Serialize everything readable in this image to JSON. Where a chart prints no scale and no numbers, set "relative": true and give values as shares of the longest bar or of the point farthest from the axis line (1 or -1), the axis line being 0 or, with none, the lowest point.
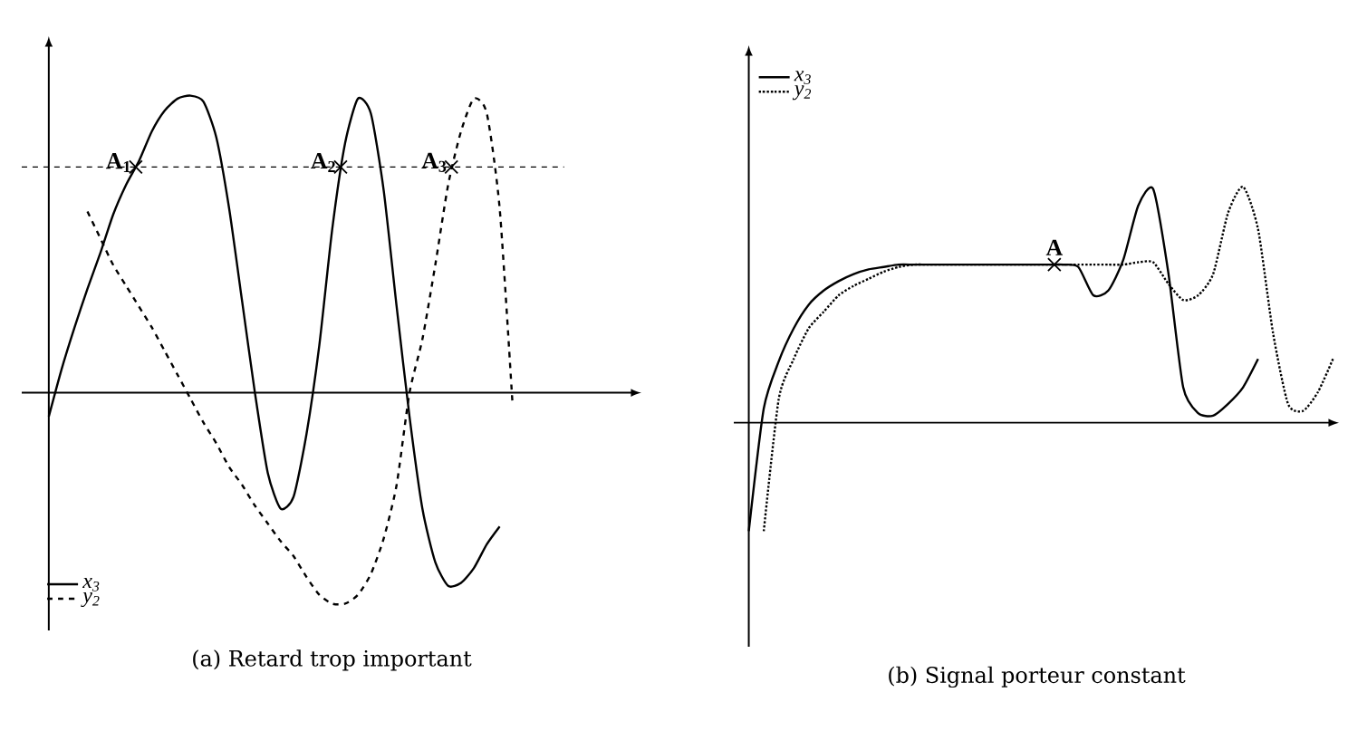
{
  "chart_data": [
    {
      "type": "line",
      "title": "(a) Retard trop important",
      "relative": true,
      "legend": "bottom left",
      "categories": [
        null,
        null,
        null,
        null,
        null,
        null,
        null,
        null,
        null,
        null,
        null,
        null,
        null,
        null,
        null,
        null,
        null,
        null,
        null,
        null,
        null,
        null,
        null,
        null,
        null,
        null,
        null,
        null,
        null,
        null,
        null,
        null,
        null,
        null,
        null,
        null,
        null
      ],
      "series": [
        {
          "name": "x$_{3}$",
          "color": "#000000",
          "line_style": "solid",
          "values": [
            -0.08,
            0.08,
            0.22,
            0.35,
            0.47,
            0.6,
            0.7,
            0.78,
            0.88,
            0.95,
            0.99,
            1.0,
            0.98,
            0.86,
            0.62,
            0.31,
            0,
            -0.27,
            -0.39,
            -0.35,
            -0.14,
            0.16,
            0.55,
            0.84,
            0.99,
            0.94,
            0.68,
            0.29,
            -0.08,
            -0.39,
            -0.57,
            -0.65,
            -0.64,
            -0.59,
            -0.51,
            -0.45,
            null
          ]
        },
        {
          "name": "y$_{2}$",
          "color": "#000000",
          "line_style": "dashed",
          "values": [
            null,
            null,
            null,
            0.61,
            0.52,
            0.43,
            0.36,
            0.29,
            0.22,
            0.14,
            0.06,
            -0.02,
            -0.1,
            -0.17,
            -0.25,
            -0.31,
            -0.38,
            -0.44,
            -0.5,
            -0.55,
            -0.62,
            -0.68,
            -0.71,
            -0.71,
            -0.68,
            -0.61,
            -0.49,
            -0.31,
            0,
            0.18,
            0.43,
            0.7,
            0.88,
            0.99,
            0.94,
            0.62,
            -0.04
          ]
        }
      ],
      "ref_lines": [
        {
          "axis": "y",
          "value": 0.76,
          "line_style": "dashed"
        }
      ],
      "annotations": [
        {
          "text": "A$_{1}$",
          "y": 0.76
        },
        {
          "text": "A$_{2}$",
          "y": 0.76
        },
        {
          "text": "A$_{3}$",
          "y": 0.76
        }
      ]
    },
    {
      "type": "line",
      "title": "(b) Signal porteur constant",
      "relative": true,
      "legend": "top left",
      "categories": [
        null,
        null,
        null,
        null,
        null,
        null,
        null,
        null,
        null,
        null,
        null,
        null,
        null,
        null,
        null,
        null,
        null,
        null,
        null,
        null,
        null,
        null,
        null,
        null,
        null,
        null,
        null,
        null,
        null,
        null,
        null,
        null,
        null,
        null,
        null,
        null,
        null,
        null,
        null,
        null
      ],
      "series": [
        {
          "name": "x$_{3}$",
          "color": "#000000",
          "line_style": "solid",
          "values": [
            -0.46,
            0.06,
            0.26,
            0.4,
            0.5,
            0.56,
            0.6,
            0.63,
            0.65,
            0.66,
            0.67,
            0.67,
            0.67,
            0.67,
            0.67,
            0.67,
            0.67,
            0.67,
            0.67,
            0.67,
            0.67,
            0.67,
            0.66,
            0.54,
            0.56,
            0.69,
            0.92,
            0.99,
            0.64,
            0.15,
            0.04,
            0.03,
            0.08,
            0.15,
            0.27,
            null,
            null,
            null,
            null,
            null
          ]
        },
        {
          "name": "y$_{2}$",
          "color": "#000000",
          "line_style": "dotted",
          "values": [
            null,
            -0.46,
            0.1,
            0.27,
            0.4,
            0.47,
            0.54,
            0.58,
            0.61,
            0.64,
            0.66,
            0.67,
            0.67,
            0.67,
            0.67,
            0.67,
            0.67,
            0.67,
            0.67,
            0.67,
            0.67,
            0.67,
            0.67,
            0.67,
            0.67,
            0.67,
            0.68,
            0.68,
            0.59,
            0.52,
            0.54,
            0.63,
            0.89,
            1.0,
            0.82,
            0.38,
            0.08,
            0.05,
            0.13,
            0.27
          ]
        }
      ],
      "annotations": [
        {
          "text": "A",
          "y": 0.67
        }
      ]
    }
  ]
}
